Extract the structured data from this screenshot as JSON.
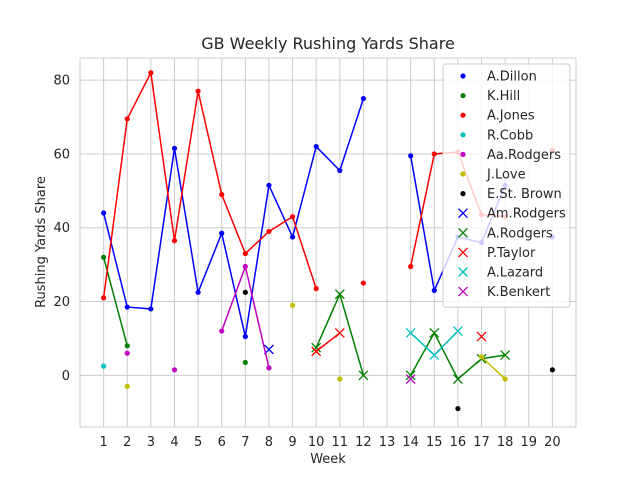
{
  "chart_data": {
    "type": "line",
    "title": "GB Weekly Rushing Yards Share",
    "xlabel": "Week",
    "ylabel": "Rushing Yards Share",
    "xlim": [
      0,
      21
    ],
    "ylim": [
      -14,
      86
    ],
    "xticks": [
      1,
      2,
      3,
      4,
      5,
      6,
      7,
      8,
      9,
      10,
      11,
      12,
      13,
      14,
      15,
      16,
      17,
      18,
      19,
      20
    ],
    "yticks": [
      0,
      20,
      40,
      60,
      80
    ],
    "grid": true,
    "legend_position": "top-right",
    "series": [
      {
        "name": "A.Dillon",
        "color": "#0000ff",
        "marker": "dot",
        "x": [
          1,
          2,
          3,
          4,
          5,
          6,
          7,
          8,
          9,
          10,
          11,
          12,
          null,
          14,
          15,
          16,
          17,
          18,
          null,
          20
        ],
        "y": [
          44,
          18.5,
          18,
          61.5,
          22.5,
          38.5,
          10.5,
          51.5,
          37.5,
          62,
          55.5,
          75,
          null,
          59.5,
          23,
          37.5,
          36,
          51.5,
          null,
          37.5
        ]
      },
      {
        "name": "K.Hill",
        "color": "#008000",
        "marker": "dot",
        "x": [
          1,
          2,
          null,
          7
        ],
        "y": [
          32,
          8,
          null,
          3.5
        ]
      },
      {
        "name": "A.Jones",
        "color": "#ff0000",
        "marker": "dot",
        "x": [
          1,
          2,
          3,
          4,
          5,
          6,
          7,
          8,
          9,
          10,
          null,
          12,
          null,
          14,
          15,
          16,
          17,
          18,
          null,
          20
        ],
        "y": [
          21,
          69.5,
          82,
          36.5,
          77,
          49,
          33,
          39,
          43,
          23.5,
          null,
          25,
          null,
          29.5,
          60,
          60.5,
          43.5,
          43,
          null,
          61
        ]
      },
      {
        "name": "R.Cobb",
        "color": "#00bfbf",
        "marker": "dot",
        "x": [
          1
        ],
        "y": [
          2.5
        ]
      },
      {
        "name": "Aa.Rodgers",
        "color": "#bf00bf",
        "marker": "dot",
        "x": [
          2,
          null,
          4
        ],
        "y": [
          6,
          null,
          1.5
        ]
      },
      {
        "name": "J.Love",
        "color": "#bfbf00",
        "marker": "dot",
        "x": [
          2,
          null,
          9,
          null,
          11
        ],
        "y": [
          -3,
          null,
          19,
          null,
          -1
        ]
      },
      {
        "name": "E.St. Brown",
        "color": "#000000",
        "marker": "dot",
        "x": [
          7,
          null,
          16,
          null,
          20
        ],
        "y": [
          22.5,
          null,
          -9,
          null,
          1.5
        ]
      },
      {
        "name": "Am.Rodgers",
        "color": "#0000ff",
        "marker": "x",
        "x": [
          8
        ],
        "y": [
          7
        ]
      },
      {
        "name": "A.Rodgers",
        "color": "#008000",
        "marker": "x",
        "x": [
          10,
          11,
          12,
          null,
          14,
          15,
          16,
          17,
          18
        ],
        "y": [
          7.5,
          22,
          0,
          null,
          0,
          11.5,
          -1,
          4.5,
          5.5
        ]
      },
      {
        "name": "P.Taylor",
        "color": "#ff0000",
        "marker": "x",
        "x": [
          10,
          11,
          null,
          17
        ],
        "y": [
          6.5,
          11.5,
          null,
          10.5
        ]
      },
      {
        "name": "A.Lazard",
        "color": "#00bfbf",
        "marker": "x",
        "x": [
          14,
          15,
          16
        ],
        "y": [
          11.5,
          5.5,
          12
        ]
      },
      {
        "name": "K.Benkert",
        "color": "#bf00bf",
        "marker": "x",
        "x": [
          14
        ],
        "y": [
          -1
        ]
      }
    ],
    "extra_lines": [
      {
        "color": "#bf00bf",
        "marker": "dot",
        "x": [
          6,
          7,
          8
        ],
        "y": [
          12,
          29.5,
          2
        ]
      },
      {
        "color": "#bfbf00",
        "marker": "dot",
        "x": [
          17,
          18
        ],
        "y": [
          5,
          -1
        ]
      }
    ]
  }
}
